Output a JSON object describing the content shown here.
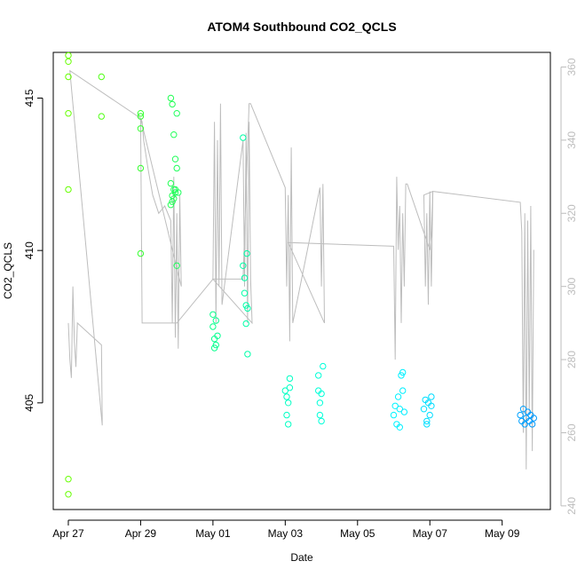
{
  "chart_data": {
    "type": "scatter",
    "title": "ATOM4 Southbound CO2_QCLS",
    "xlabel": "Date",
    "ylabel": "CO2_QCLS",
    "xlim": [
      "2018-04-26T14:00",
      "2018-05-10T08:00"
    ],
    "ylim": [
      401.5,
      416.5
    ],
    "y2lim": [
      239,
      364
    ],
    "x_ticks": [
      {
        "date": "2018-04-27",
        "label": "Apr 27"
      },
      {
        "date": "2018-04-29",
        "label": "Apr 29"
      },
      {
        "date": "2018-05-01",
        "label": "May 01"
      },
      {
        "date": "2018-05-03",
        "label": "May 03"
      },
      {
        "date": "2018-05-05",
        "label": "May 05"
      },
      {
        "date": "2018-05-07",
        "label": "May 07"
      },
      {
        "date": "2018-05-09",
        "label": "May 09"
      }
    ],
    "y_ticks": [
      405,
      410,
      415
    ],
    "y2_ticks": [
      240,
      260,
      280,
      300,
      320,
      340,
      360
    ],
    "grid": false,
    "legend": "none",
    "colors": {
      "line": "#bdbdbd",
      "axis": "#000000",
      "right_axis": "#bdbdbd",
      "point_scale": [
        "#66ff00",
        "#33ff33",
        "#00ff99",
        "#00ffcc",
        "#00ffff",
        "#00ccff",
        "#0099ff"
      ]
    },
    "series": [
      {
        "kind": "points",
        "axis": "left",
        "x": [
          "2018-04-27T00:00",
          "2018-04-27T00:00",
          "2018-04-27T00:00",
          "2018-04-27T00:00",
          "2018-04-27T00:00",
          "2018-04-27T00:00",
          "2018-04-27T00:00",
          "2018-04-27T22:00",
          "2018-04-27T22:00",
          "2018-04-29T00:00",
          "2018-04-29T00:00",
          "2018-04-29T00:00",
          "2018-04-29T00:00",
          "2018-04-29T00:00",
          "2018-04-29T20:00",
          "2018-04-29T20:00",
          "2018-04-29T20:00",
          "2018-04-29T21:00",
          "2018-04-29T21:00",
          "2018-04-29T21:00",
          "2018-04-29T22:00",
          "2018-04-29T22:00",
          "2018-04-29T22:00",
          "2018-04-29T23:00",
          "2018-04-29T23:00",
          "2018-04-29T23:00",
          "2018-04-30T00:00",
          "2018-04-30T00:00",
          "2018-04-30T00:00",
          "2018-04-30T01:00",
          "2018-05-01T00:00",
          "2018-05-01T00:00",
          "2018-05-01T01:00",
          "2018-05-01T01:00",
          "2018-05-01T02:00",
          "2018-05-01T02:00",
          "2018-05-01T03:00",
          "2018-05-01T20:00",
          "2018-05-01T20:00",
          "2018-05-01T21:00",
          "2018-05-01T21:00",
          "2018-05-01T22:00",
          "2018-05-01T22:00",
          "2018-05-01T23:00",
          "2018-05-01T23:00",
          "2018-05-01T22:30",
          "2018-05-03T00:00",
          "2018-05-03T01:00",
          "2018-05-03T01:00",
          "2018-05-03T02:00",
          "2018-05-03T02:00",
          "2018-05-03T03:00",
          "2018-05-03T03:00",
          "2018-05-03T22:00",
          "2018-05-03T22:00",
          "2018-05-03T23:00",
          "2018-05-03T23:00",
          "2018-05-04T00:00",
          "2018-05-04T00:00",
          "2018-05-04T01:00",
          "2018-05-06T00:00",
          "2018-05-06T01:00",
          "2018-05-06T02:00",
          "2018-05-06T03:00",
          "2018-05-06T04:00",
          "2018-05-06T05:00",
          "2018-05-06T06:00",
          "2018-05-06T04:00",
          "2018-05-06T06:00",
          "2018-05-06T07:00",
          "2018-05-06T20:00",
          "2018-05-06T21:00",
          "2018-05-06T22:00",
          "2018-05-06T23:00",
          "2018-05-07T00:00",
          "2018-05-07T01:00",
          "2018-05-06T22:00",
          "2018-05-07T01:00",
          "2018-05-09T12:00",
          "2018-05-09T13:00",
          "2018-05-09T14:00",
          "2018-05-09T15:00",
          "2018-05-09T16:00",
          "2018-05-09T17:00",
          "2018-05-09T18:00",
          "2018-05-09T19:00",
          "2018-05-09T20:00",
          "2018-05-09T21:00"
        ],
        "y": [
          416.4,
          416.2,
          415.7,
          414.5,
          412.0,
          402.5,
          402.0,
          415.7,
          414.4,
          414.5,
          414.4,
          414.0,
          412.7,
          409.9,
          415.0,
          412.2,
          411.5,
          414.8,
          411.8,
          411.6,
          413.8,
          412.0,
          411.7,
          413.0,
          412.0,
          411.9,
          414.5,
          412.7,
          409.5,
          411.9,
          407.9,
          407.5,
          407.1,
          406.8,
          407.7,
          406.9,
          407.2,
          413.7,
          409.5,
          409.1,
          408.6,
          408.2,
          407.6,
          408.1,
          406.6,
          409.9,
          405.4,
          405.2,
          404.6,
          405.0,
          404.3,
          405.5,
          405.8,
          405.9,
          405.4,
          405.0,
          404.6,
          405.3,
          404.4,
          406.2,
          404.6,
          404.9,
          404.3,
          405.2,
          404.2,
          405.9,
          406.0,
          404.8,
          405.4,
          404.7,
          404.8,
          405.1,
          404.4,
          405.0,
          404.6,
          405.2,
          404.3,
          404.9,
          404.6,
          404.4,
          404.8,
          404.3,
          404.5,
          404.7,
          404.4,
          404.6,
          404.3,
          404.5
        ]
      },
      {
        "kind": "line",
        "axis": "right",
        "x": [
          "2018-04-27T00:00",
          "2018-04-27T01:00",
          "2018-04-27T02:00",
          "2018-04-27T03:00",
          "2018-04-27T04:00",
          "2018-04-27T05:00",
          "2018-04-27T06:00",
          "2018-04-27T22:00",
          "2018-04-27T22:30",
          "2018-04-27T01:00",
          "2018-04-29T00:00",
          "2018-04-29T01:00",
          "2018-04-29T02:00",
          "2018-04-29T05:00",
          "2018-04-29T08:00",
          "2018-04-29T12:00",
          "2018-04-29T16:00",
          "2018-04-29T20:00",
          "2018-04-29T21:00",
          "2018-04-29T22:00",
          "2018-04-29T23:00",
          "2018-04-30T00:00",
          "2018-04-30T01:00",
          "2018-04-30T02:00",
          "2018-04-30T03:00",
          "2018-04-29T00:00",
          "2018-04-29T01:00",
          "2018-04-30T00:00",
          "2018-05-01T00:00",
          "2018-05-01T01:00",
          "2018-05-01T02:00",
          "2018-05-01T03:00",
          "2018-05-01T04:00",
          "2018-05-01T05:00",
          "2018-05-01T06:00",
          "2018-05-01T20:00",
          "2018-05-01T21:00",
          "2018-05-01T22:00",
          "2018-05-01T23:00",
          "2018-05-02T00:00",
          "2018-05-02T01:00",
          "2018-05-02T02:00",
          "2018-05-01T00:00",
          "2018-05-01T20:00",
          "2018-05-02T00:00",
          "2018-05-02T01:00",
          "2018-05-03T00:00",
          "2018-05-03T01:00",
          "2018-05-03T02:00",
          "2018-05-03T03:00",
          "2018-05-03T04:00",
          "2018-05-03T05:00",
          "2018-05-03T23:00",
          "2018-05-04T00:00",
          "2018-05-04T01:00",
          "2018-05-04T02:00",
          "2018-05-03T02:00",
          "2018-05-06T00:00",
          "2018-05-06T01:00",
          "2018-05-06T02:00",
          "2018-05-06T03:00",
          "2018-05-06T04:00",
          "2018-05-06T05:00",
          "2018-05-06T06:00",
          "2018-05-06T07:00",
          "2018-05-06T08:00",
          "2018-05-06T09:00",
          "2018-05-07T00:00",
          "2018-05-07T01:00",
          "2018-05-07T02:00",
          "2018-05-06T20:00",
          "2018-05-06T21:00",
          "2018-05-06T22:00",
          "2018-05-06T23:00",
          "2018-05-07T00:00",
          "2018-05-07T01:00",
          "2018-05-07T02:00",
          "2018-05-09T12:00",
          "2018-05-09T13:00",
          "2018-05-09T14:00",
          "2018-05-09T15:00",
          "2018-05-09T16:00",
          "2018-05-09T17:00",
          "2018-05-09T18:00",
          "2018-05-09T19:00",
          "2018-05-09T20:00",
          "2018-05-09T21:00"
        ],
        "y": [
          290,
          280,
          275,
          300,
          285,
          278,
          290,
          284,
          262,
          359,
          346,
          345,
          340,
          332,
          325,
          320,
          322,
          318,
          290,
          330,
          286,
          320,
          283,
          325,
          300,
          346,
          290,
          290,
          302,
          345,
          290,
          340,
          300,
          350,
          295,
          340,
          300,
          342,
          290,
          345,
          302,
          290,
          302,
          302,
          350,
          350,
          327,
          300,
          325,
          285,
          338,
          290,
          327,
          300,
          328,
          290,
          312,
          311,
          280,
          330,
          310,
          322,
          290,
          320,
          300,
          328,
          328,
          310,
          314,
          326,
          325,
          300,
          320,
          295,
          326,
          300,
          326,
          323,
          315,
          260,
          320,
          250,
          318,
          265,
          322,
          255,
          310
        ]
      }
    ]
  }
}
